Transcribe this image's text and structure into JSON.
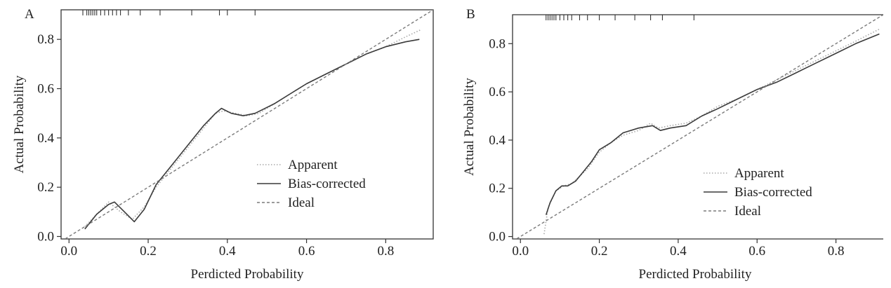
{
  "chart_data": [
    {
      "panel_label": "A",
      "type": "line",
      "xlabel": "Perdicted Probability",
      "ylabel": "Actual Probability",
      "xlim": [
        -0.02,
        0.92
      ],
      "ylim": [
        -0.01,
        0.92
      ],
      "xticks": [
        "0.0",
        "0.2",
        "0.4",
        "0.6",
        "0.8"
      ],
      "yticks": [
        "0.0",
        "0.2",
        "0.4",
        "0.6",
        "0.8"
      ],
      "legend": [
        "Apparent",
        "Bias-corrected",
        "Ideal"
      ],
      "legend_position": "bottom-right",
      "series": [
        {
          "name": "Apparent",
          "style": "dotted",
          "x": [
            0.04,
            0.07,
            0.1,
            0.13,
            0.16,
            0.19,
            0.22,
            0.26,
            0.3,
            0.34,
            0.37,
            0.39,
            0.42,
            0.45,
            0.48,
            0.52,
            0.56,
            0.6,
            0.65,
            0.7,
            0.75,
            0.8,
            0.85,
            0.89
          ],
          "y": [
            0.04,
            0.09,
            0.14,
            0.1,
            0.07,
            0.12,
            0.2,
            0.28,
            0.36,
            0.44,
            0.5,
            0.51,
            0.5,
            0.49,
            0.5,
            0.54,
            0.58,
            0.62,
            0.66,
            0.7,
            0.74,
            0.77,
            0.81,
            0.84
          ]
        },
        {
          "name": "Bias-corrected",
          "style": "solid",
          "x": [
            0.04,
            0.07,
            0.1,
            0.115,
            0.14,
            0.165,
            0.19,
            0.22,
            0.26,
            0.3,
            0.34,
            0.37,
            0.385,
            0.41,
            0.44,
            0.47,
            0.52,
            0.56,
            0.6,
            0.65,
            0.7,
            0.75,
            0.8,
            0.85,
            0.885
          ],
          "y": [
            0.03,
            0.09,
            0.13,
            0.14,
            0.1,
            0.06,
            0.11,
            0.21,
            0.29,
            0.37,
            0.45,
            0.5,
            0.52,
            0.5,
            0.49,
            0.5,
            0.54,
            0.58,
            0.62,
            0.66,
            0.7,
            0.74,
            0.77,
            0.79,
            0.8
          ]
        },
        {
          "name": "Ideal",
          "style": "dashed",
          "x": [
            -0.02,
            0.92
          ],
          "y": [
            -0.02,
            0.92
          ]
        }
      ],
      "rug_x": [
        0.035,
        0.045,
        0.05,
        0.055,
        0.06,
        0.065,
        0.07,
        0.08,
        0.09,
        0.1,
        0.11,
        0.12,
        0.13,
        0.15,
        0.18,
        0.23,
        0.31,
        0.38,
        0.4,
        0.47
      ]
    },
    {
      "panel_label": "B",
      "type": "line",
      "xlabel": "Perdicted Probability",
      "ylabel": "Actual Probability",
      "xlim": [
        -0.02,
        0.92
      ],
      "ylim": [
        -0.01,
        0.92
      ],
      "xticks": [
        "0.0",
        "0.2",
        "0.4",
        "0.6",
        "0.8"
      ],
      "yticks": [
        "0.0",
        "0.2",
        "0.4",
        "0.6",
        "0.8"
      ],
      "legend": [
        "Apparent",
        "Bias-corrected",
        "Ideal"
      ],
      "legend_position": "bottom-right",
      "series": [
        {
          "name": "Apparent",
          "style": "dotted",
          "x": [
            0.06,
            0.07,
            0.09,
            0.11,
            0.13,
            0.15,
            0.17,
            0.2,
            0.23,
            0.26,
            0.3,
            0.33,
            0.35,
            0.38,
            0.42,
            0.46,
            0.5,
            0.55,
            0.6,
            0.65,
            0.7,
            0.75,
            0.8,
            0.85,
            0.91
          ],
          "y": [
            0.01,
            0.12,
            0.19,
            0.21,
            0.22,
            0.25,
            0.28,
            0.35,
            0.39,
            0.42,
            0.44,
            0.47,
            0.45,
            0.46,
            0.47,
            0.5,
            0.54,
            0.57,
            0.61,
            0.65,
            0.69,
            0.73,
            0.77,
            0.81,
            0.86
          ]
        },
        {
          "name": "Bias-corrected",
          "style": "solid",
          "x": [
            0.065,
            0.075,
            0.09,
            0.105,
            0.12,
            0.14,
            0.16,
            0.18,
            0.2,
            0.23,
            0.26,
            0.3,
            0.335,
            0.355,
            0.38,
            0.42,
            0.46,
            0.5,
            0.55,
            0.6,
            0.65,
            0.7,
            0.75,
            0.8,
            0.85,
            0.91
          ],
          "y": [
            0.09,
            0.14,
            0.19,
            0.21,
            0.21,
            0.23,
            0.27,
            0.31,
            0.36,
            0.39,
            0.43,
            0.45,
            0.46,
            0.44,
            0.45,
            0.46,
            0.5,
            0.53,
            0.57,
            0.61,
            0.64,
            0.68,
            0.72,
            0.76,
            0.8,
            0.84
          ]
        },
        {
          "name": "Ideal",
          "style": "dashed",
          "x": [
            -0.02,
            0.92
          ],
          "y": [
            -0.02,
            0.92
          ]
        }
      ],
      "rug_x": [
        0.065,
        0.07,
        0.075,
        0.08,
        0.085,
        0.09,
        0.1,
        0.11,
        0.12,
        0.13,
        0.15,
        0.17,
        0.2,
        0.24,
        0.29,
        0.33,
        0.36,
        0.44
      ]
    }
  ]
}
